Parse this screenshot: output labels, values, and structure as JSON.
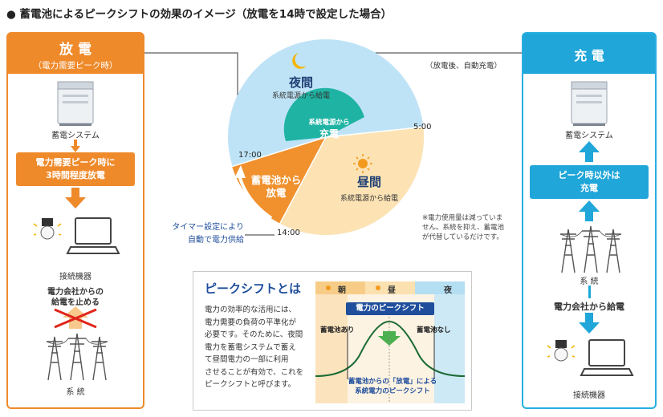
{
  "title": "● 蓄電池によるピークシフトの効果のイメージ（放電を14時で設定した場合）",
  "left_panel": {
    "header": "放 電",
    "subheader": "（電力需要ピーク時）",
    "storage_label": "蓄電システム",
    "action_line1": "電力需要ピーク時に",
    "action_line2": "3時間程度放電",
    "devices_label": "接続機器",
    "stop_line1": "電力会社からの",
    "stop_line2": "給電を止める",
    "grid_label": "系 統"
  },
  "right_panel": {
    "header": "充 電",
    "storage_label": "蓄電システム",
    "action_line1": "ピーク時以外は",
    "action_line2": "充電",
    "grid_label": "系 統",
    "supply_label": "電力会社から給電",
    "devices_label": "接続機器"
  },
  "pie": {
    "night_title": "夜間",
    "night_sub": "系統電源から給電",
    "charge_line1": "系統電源から",
    "charge_line2": "充電",
    "day_title": "昼間",
    "day_sub": "系統電源から給電",
    "discharge_line1": "蓄電池から",
    "discharge_line2": "放電",
    "time_5": "5:00",
    "time_17": "17:00",
    "time_14": "14:00",
    "auto_charge_note": "（放電後、自動充電）",
    "timer_line1": "タイマー設定により",
    "timer_line2": "自動で電力供給",
    "footnote_line1": "※電力使用量は減っていま",
    "footnote_line2": "せん。系統を抑え、蓄電池",
    "footnote_line3": "が代替しているだけです。",
    "colors": {
      "night": "#bfe3f6",
      "day": "#fde3b4",
      "charge": "#1fb3a3",
      "discharge": "#f0912e"
    }
  },
  "peak_shift": {
    "title": "ピークシフトとは",
    "text_lines": [
      "電力の効率的な活用には、",
      "電力需要の負荷の平準化が",
      "必要です。そのために、夜間",
      "電力を蓄電システムで蓄え",
      "て昼間電力の一部に利用",
      "させることが有効で、これを",
      "ピークシフトと呼びます。"
    ],
    "morning": "朝",
    "noon": "昼",
    "night": "夜",
    "label_peakshift": "電力のピークシフト",
    "with_battery": "蓄電池あり",
    "without_battery": "蓄電池なし",
    "caption_line1": "蓄電池からの「放電」による",
    "caption_line2": "系統電力のピークシフト"
  }
}
